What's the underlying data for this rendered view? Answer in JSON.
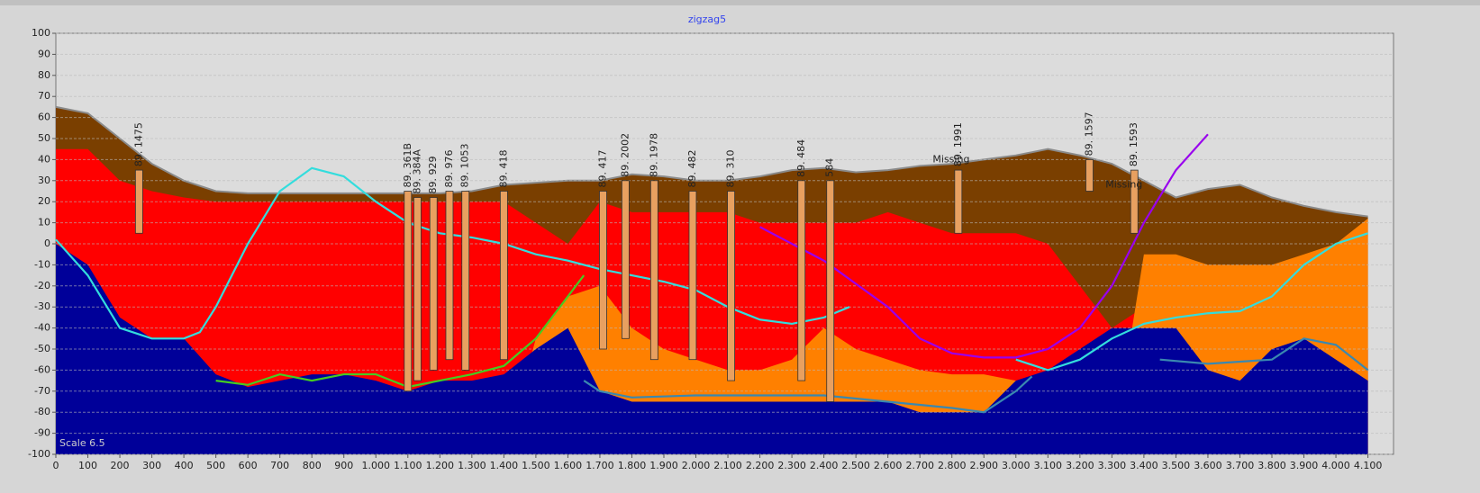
{
  "chart_data": {
    "type": "section",
    "title": "zigzag5",
    "note": "Scale 6.5",
    "xlim": [
      0,
      4180
    ],
    "ylim": [
      -100,
      100
    ],
    "grid": true,
    "yticks": [
      -100,
      -90,
      -80,
      -70,
      -60,
      -50,
      -40,
      -30,
      -20,
      -10,
      0,
      10,
      20,
      30,
      40,
      50,
      60,
      70,
      80,
      90,
      100
    ],
    "xticks": [
      0,
      100,
      200,
      300,
      400,
      500,
      600,
      700,
      800,
      900,
      {
        "value": 1000,
        "label": "1.000"
      },
      {
        "value": 1100,
        "label": "1.100"
      },
      {
        "value": 1200,
        "label": "1.200"
      },
      {
        "value": 1300,
        "label": "1.300"
      },
      {
        "value": 1400,
        "label": "1.400"
      },
      {
        "value": 1500,
        "label": "1.500"
      },
      {
        "value": 1600,
        "label": "1.600"
      },
      {
        "value": 1700,
        "label": "1.700"
      },
      {
        "value": 1800,
        "label": "1.800"
      },
      {
        "value": 1900,
        "label": "1.900"
      },
      {
        "value": 2000,
        "label": "2.000"
      },
      {
        "value": 2100,
        "label": "2.100"
      },
      {
        "value": 2200,
        "label": "2.200"
      },
      {
        "value": 2300,
        "label": "2.300"
      },
      {
        "value": 2400,
        "label": "2.400"
      },
      {
        "value": 2500,
        "label": "2.500"
      },
      {
        "value": 2600,
        "label": "2.600"
      },
      {
        "value": 2700,
        "label": "2.700"
      },
      {
        "value": 2800,
        "label": "2.800"
      },
      {
        "value": 2900,
        "label": "2.900"
      },
      {
        "value": 3000,
        "label": "3.000"
      },
      {
        "value": 3100,
        "label": "3.100"
      },
      {
        "value": 3200,
        "label": "3.200"
      },
      {
        "value": 3300,
        "label": "3.300"
      },
      {
        "value": 3400,
        "label": "3.400"
      },
      {
        "value": 3500,
        "label": "3.500"
      },
      {
        "value": 3600,
        "label": "3.600"
      },
      {
        "value": 3700,
        "label": "3.700"
      },
      {
        "value": 3800,
        "label": "3.800"
      },
      {
        "value": 3900,
        "label": "3.900"
      },
      {
        "value": 4000,
        "label": "4.000"
      },
      {
        "value": 4100,
        "label": "4.100"
      }
    ],
    "x": [
      0,
      100,
      200,
      300,
      400,
      500,
      600,
      700,
      800,
      900,
      1000,
      1100,
      1200,
      1300,
      1400,
      1500,
      1600,
      1700,
      1800,
      1900,
      2000,
      2100,
      2200,
      2300,
      2400,
      2500,
      2600,
      2700,
      2800,
      2900,
      3000,
      3100,
      3200,
      3300,
      3400,
      3500,
      3600,
      3700,
      3800,
      3900,
      4000,
      4100
    ],
    "layers": [
      {
        "color": "#7a3f00",
        "stroke": "#8a8a8a",
        "values": [
          65,
          62,
          50,
          38,
          30,
          25,
          24,
          24,
          24,
          24,
          24,
          24,
          24,
          25,
          28,
          29,
          30,
          30,
          33,
          32,
          30,
          30,
          32,
          35,
          36,
          34,
          35,
          37,
          38,
          40,
          42,
          45,
          42,
          38,
          30,
          22,
          26,
          28,
          22,
          18,
          15,
          13
        ]
      },
      {
        "color": "#ff0000",
        "values": [
          45,
          45,
          30,
          25,
          22,
          20,
          20,
          20,
          20,
          20,
          20,
          20,
          20,
          20,
          20,
          10,
          0,
          20,
          15,
          15,
          15,
          15,
          10,
          10,
          10,
          10,
          15,
          10,
          5,
          5,
          5,
          0,
          -20,
          -40,
          -30,
          -40,
          -45,
          -50,
          -50,
          -50,
          -50,
          -50
        ]
      },
      {
        "color": "#ff8000",
        "values": [
          -100,
          -100,
          -100,
          -100,
          -100,
          -100,
          -100,
          -100,
          -100,
          -100,
          -100,
          -100,
          -100,
          -100,
          -100,
          -45,
          -25,
          -20,
          -40,
          -50,
          -55,
          -60,
          -60,
          -55,
          -40,
          -50,
          -55,
          -60,
          -62,
          -62,
          -65,
          -100,
          -100,
          -100,
          -5,
          -5,
          -10,
          -10,
          -10,
          -5,
          0,
          12
        ]
      },
      {
        "color": "#000099",
        "values": [
          0,
          -10,
          -35,
          -45,
          -45,
          -62,
          -68,
          -65,
          -62,
          -62,
          -65,
          -70,
          -65,
          -65,
          -62,
          -50,
          -40,
          -70,
          -75,
          -75,
          -75,
          -75,
          -75,
          -75,
          -75,
          -75,
          -75,
          -80,
          -80,
          -80,
          -65,
          -60,
          -50,
          -40,
          -40,
          -40,
          -60,
          -65,
          -50,
          -45,
          -55,
          -65
        ]
      }
    ],
    "series": [
      {
        "color": "#33dddd",
        "x": [
          0,
          100,
          200,
          300,
          400,
          450,
          500,
          600,
          700,
          800,
          900,
          1000,
          1100,
          1200,
          1300,
          1400,
          1500,
          1600,
          1700,
          1800,
          1900,
          2000,
          2100,
          2200,
          2300,
          2400,
          2480,
          2700,
          3000,
          3100,
          3200,
          3300,
          3400,
          3500,
          3600,
          3700,
          3800,
          3900,
          4000,
          4100
        ],
        "values": [
          2,
          -15,
          -40,
          -45,
          -45,
          -42,
          -30,
          0,
          25,
          36,
          32,
          20,
          10,
          5,
          3,
          0,
          -5,
          -8,
          -12,
          -15,
          -18,
          -22,
          -30,
          -36,
          -38,
          -35,
          -30,
          null,
          -55,
          -60,
          -55,
          -45,
          -38,
          -35,
          -33,
          -32,
          -25,
          -10,
          0,
          5
        ]
      },
      {
        "color": "#44cc22",
        "x": [
          500,
          600,
          700,
          800,
          900,
          1000,
          1100,
          1200,
          1300,
          1400,
          1500,
          1600,
          1650
        ],
        "values": [
          -65,
          -67,
          -62,
          -65,
          -62,
          -62,
          -68,
          -65,
          -62,
          -58,
          -45,
          -25,
          -15
        ]
      },
      {
        "color": "#9900ee",
        "x": [
          2200,
          2400,
          2600,
          2700,
          2800,
          2900,
          3000,
          3100,
          3200,
          3300,
          3400,
          3500,
          3600
        ],
        "values": [
          8,
          -8,
          -30,
          -45,
          -52,
          -54,
          -54,
          -50,
          -40,
          -20,
          10,
          35,
          52
        ]
      },
      {
        "color": "#3a88b0",
        "x": [
          1650,
          1700,
          1800,
          2000,
          2400,
          2800,
          2900,
          3000,
          3050,
          3300,
          3450,
          3600,
          3800,
          3900,
          4000,
          4100
        ],
        "values": [
          -65,
          -70,
          -73,
          -72,
          -72,
          -78,
          -80,
          -70,
          -63,
          null,
          -55,
          -57,
          -55,
          -45,
          -48,
          -60
        ]
      }
    ],
    "boreholes": [
      {
        "label": "89. 1475",
        "x": 260,
        "top": 35,
        "bottom": 5
      },
      {
        "label": "89. 361B",
        "x": 1100,
        "top": 25,
        "bottom": -70
      },
      {
        "label": "89. 384A",
        "x": 1130,
        "top": 22,
        "bottom": -65
      },
      {
        "label": "89. 929",
        "x": 1180,
        "top": 22,
        "bottom": -60
      },
      {
        "label": "89. 976",
        "x": 1230,
        "top": 25,
        "bottom": -55
      },
      {
        "label": "89. 1053",
        "x": 1280,
        "top": 25,
        "bottom": -60
      },
      {
        "label": "89. 418",
        "x": 1400,
        "top": 25,
        "bottom": -55
      },
      {
        "label": "89. 417",
        "x": 1710,
        "top": 25,
        "bottom": -50
      },
      {
        "label": "89. 2002",
        "x": 1780,
        "top": 30,
        "bottom": -45
      },
      {
        "label": "89. 1978",
        "x": 1870,
        "top": 30,
        "bottom": -55
      },
      {
        "label": "89. 482",
        "x": 1990,
        "top": 25,
        "bottom": -55
      },
      {
        "label": "89. 310",
        "x": 2110,
        "top": 25,
        "bottom": -65
      },
      {
        "label": "89. 484",
        "x": 2330,
        "top": 30,
        "bottom": -65
      },
      {
        "label": "584",
        "x": 2420,
        "top": 30,
        "bottom": -75
      },
      {
        "label": "89. 1991",
        "x": 2820,
        "top": 35,
        "bottom": 5
      },
      {
        "label": "89. 1597",
        "x": 3230,
        "top": 40,
        "bottom": 25
      },
      {
        "label": "89. 1593",
        "x": 3370,
        "top": 35,
        "bottom": 5
      }
    ],
    "annotations": [
      {
        "text": "Missing",
        "x": 2740,
        "y": 40
      },
      {
        "text": "Missing",
        "x": 3280,
        "y": 28
      }
    ]
  }
}
